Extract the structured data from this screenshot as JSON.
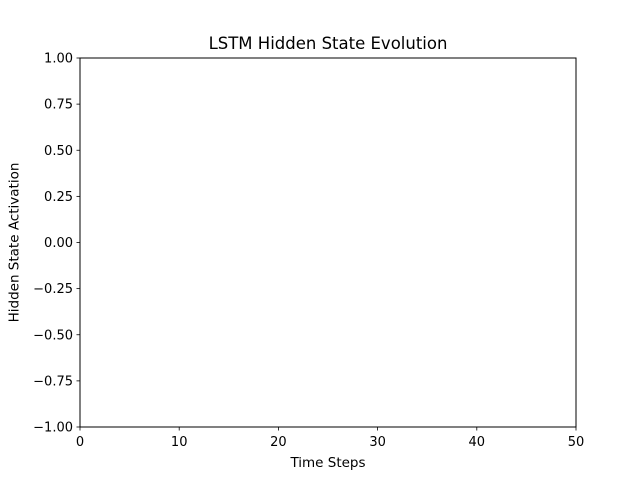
{
  "chart_data": {
    "type": "line",
    "title": "LSTM Hidden State Evolution",
    "xlabel": "Time Steps",
    "ylabel": "Hidden State Activation",
    "xlim": [
      0,
      50
    ],
    "ylim": [
      -1.0,
      1.0
    ],
    "x_ticks": [
      0,
      10,
      20,
      30,
      40,
      50
    ],
    "x_tick_labels": [
      "0",
      "10",
      "20",
      "30",
      "40",
      "50"
    ],
    "y_ticks": [
      -1.0,
      -0.75,
      -0.5,
      -0.25,
      0.0,
      0.25,
      0.5,
      0.75,
      1.0
    ],
    "y_tick_labels": [
      "−1.00",
      "−0.75",
      "−0.50",
      "−0.25",
      "0.00",
      "0.25",
      "0.50",
      "0.75",
      "1.00"
    ],
    "grid": false,
    "series": []
  }
}
